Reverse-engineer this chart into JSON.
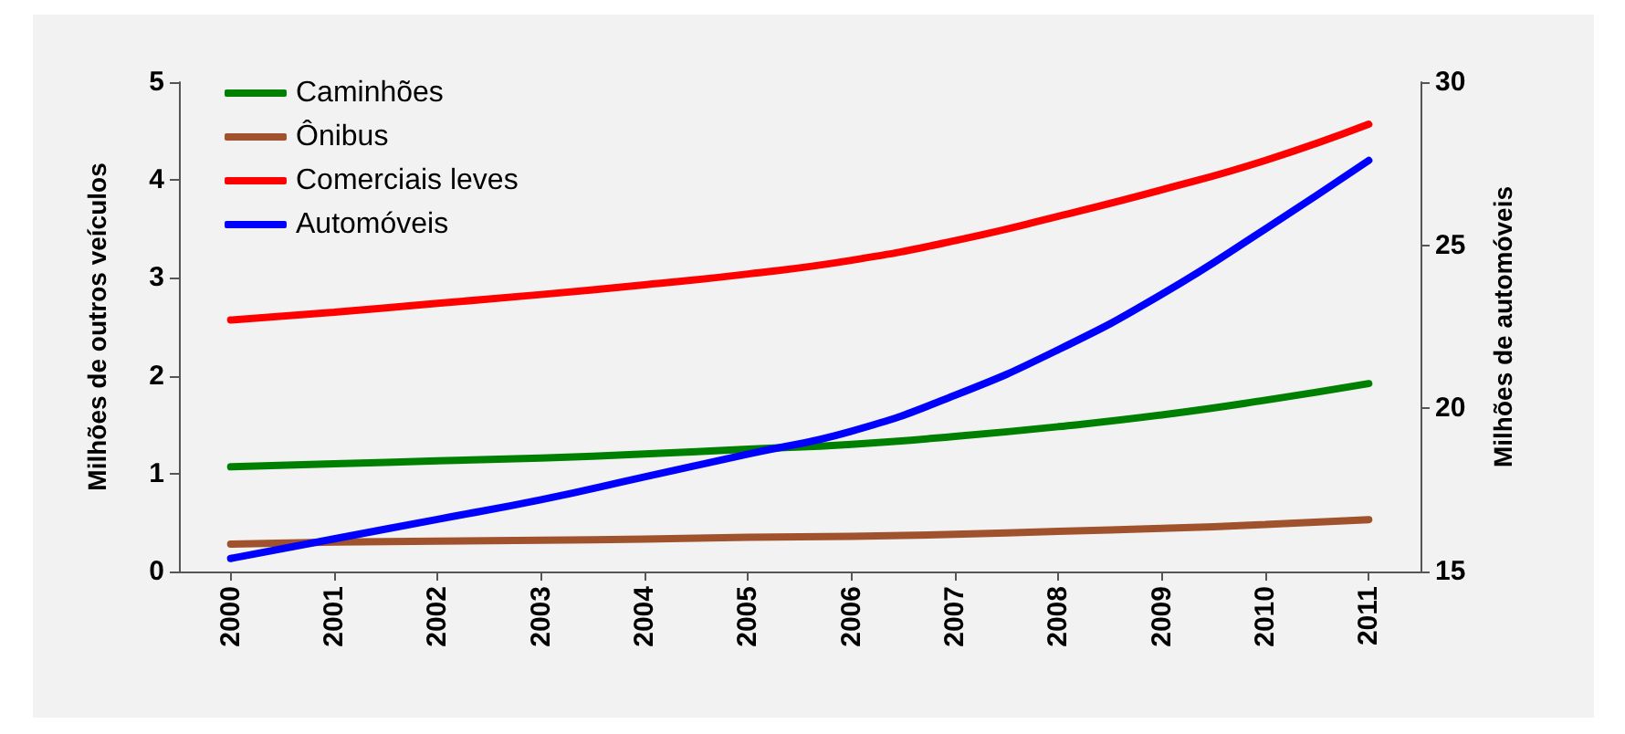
{
  "chart_data": {
    "type": "line",
    "ylabel": "Milhões de outros veículos",
    "y2label": "Milhões de automóveis",
    "categories": [
      "2000",
      "2001",
      "2002",
      "2003",
      "2004",
      "2005",
      "2006",
      "2007",
      "2008",
      "2009",
      "2010",
      "2011"
    ],
    "series": [
      {
        "name": "Caminhões",
        "color": "#008000",
        "values": [
          1.07,
          1.1,
          1.13,
          1.16,
          1.2,
          1.25,
          1.3,
          1.38,
          1.48,
          1.6,
          1.75,
          1.92
        ]
      },
      {
        "name": "Ônibus",
        "color": "#a0522d",
        "values": [
          0.28,
          0.3,
          0.31,
          0.32,
          0.33,
          0.35,
          0.36,
          0.38,
          0.41,
          0.44,
          0.48,
          0.53
        ]
      },
      {
        "name": "Comerciais leves",
        "color": "#ff0000",
        "values": [
          2.57,
          2.65,
          2.74,
          2.83,
          2.93,
          3.04,
          3.18,
          3.38,
          3.63,
          3.9,
          4.2,
          4.57
        ]
      },
      {
        "name": "Automóveis",
        "color": "#0000ff",
        "axis": "y2",
        "values": [
          15.4,
          16.0,
          16.6,
          17.2,
          17.9,
          18.6,
          19.3,
          20.4,
          21.8,
          23.5,
          25.5,
          27.6
        ]
      }
    ],
    "ylim": [
      0,
      5
    ],
    "yticks": [
      0,
      1,
      2,
      3,
      4,
      5
    ],
    "y2lim": [
      15,
      30
    ],
    "y2ticks": [
      15,
      20,
      25,
      30
    ],
    "grid": false,
    "legend": "top left",
    "marker": "none",
    "line_style": "solid"
  }
}
